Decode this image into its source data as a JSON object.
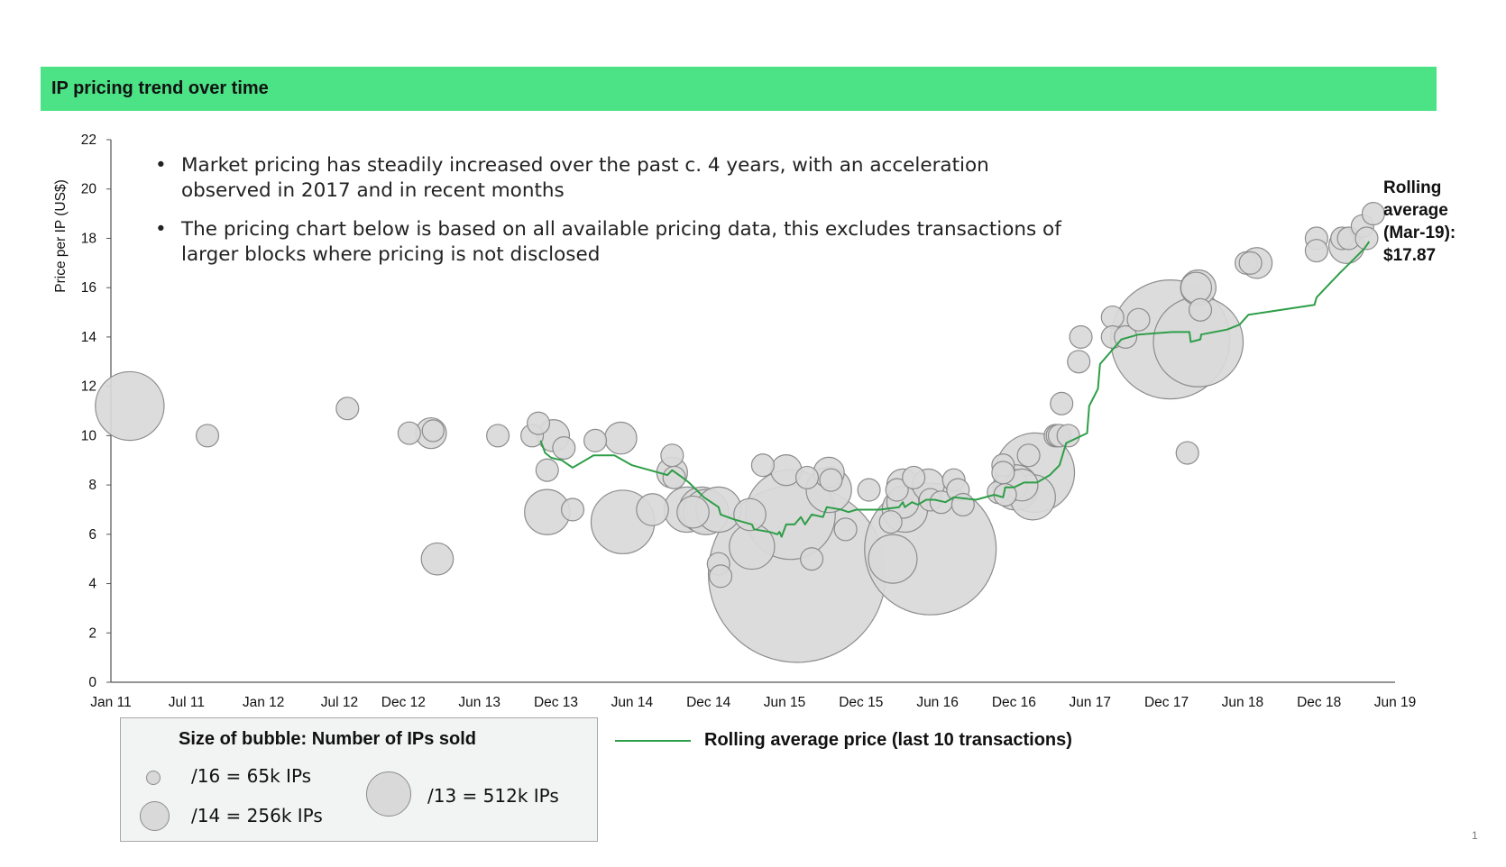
{
  "header": {
    "title": "IP pricing trend over time",
    "accent_color": "#4be386"
  },
  "notes": [
    "Market pricing has steadily increased over the past c. 4 years, with an acceleration observed in 2017 and in recent months",
    "The pricing chart below is based on all available pricing data, this excludes transactions of larger blocks where pricing is not disclosed"
  ],
  "rolling_note": [
    "Rolling",
    "average",
    "(Mar-19):",
    "$17.87"
  ],
  "size_legend": {
    "title": "Size of bubble: Number of IPs sold",
    "items": [
      {
        "label": "/16 = 65k IPs",
        "ips_thousands": 65
      },
      {
        "label": "/14 = 256k IPs",
        "ips_thousands": 256
      },
      {
        "label": "/13 = 512k IPs",
        "ips_thousands": 512
      }
    ]
  },
  "line_legend": {
    "label": "Rolling average price (last 10 transactions)",
    "color": "#2e9e48"
  },
  "page_number": "1",
  "chart_data": {
    "type": "scatter",
    "ylabel": "Price per IP (US$)",
    "xlabel": "",
    "ylim": [
      0,
      22
    ],
    "yticks": [
      0,
      2,
      4,
      6,
      8,
      10,
      12,
      14,
      16,
      18,
      20,
      22
    ],
    "xlim": [
      "2011-01",
      "2019-06"
    ],
    "xticks": [
      {
        "label": "Jan 11",
        "date": "2011-01"
      },
      {
        "label": "Jul 11",
        "date": "2011-07"
      },
      {
        "label": "Jan 12",
        "date": "2012-01"
      },
      {
        "label": "Jul 12",
        "date": "2012-07"
      },
      {
        "label": "Dec 12",
        "date": "2012-12"
      },
      {
        "label": "Jun 13",
        "date": "2013-06"
      },
      {
        "label": "Dec 13",
        "date": "2013-12"
      },
      {
        "label": "Jun 14",
        "date": "2014-06"
      },
      {
        "label": "Dec 14",
        "date": "2014-12"
      },
      {
        "label": "Jun 15",
        "date": "2015-06"
      },
      {
        "label": "Dec 15",
        "date": "2015-12"
      },
      {
        "label": "Jun 16",
        "date": "2016-06"
      },
      {
        "label": "Dec 16",
        "date": "2016-12"
      },
      {
        "label": "Jun 17",
        "date": "2017-06"
      },
      {
        "label": "Dec 17",
        "date": "2017-12"
      },
      {
        "label": "Jun 18",
        "date": "2018-06"
      },
      {
        "label": "Dec 18",
        "date": "2018-12"
      },
      {
        "label": "Jun 19",
        "date": "2019-06"
      }
    ],
    "bubble_color": "#d9d9d9",
    "bubble_stroke": "#8c8c8c",
    "bubble_series": {
      "name": "Transactions (size = number of IPs sold)",
      "points": [
        {
          "date": "2011-02-15",
          "price": 11.2,
          "ips_k": 300
        },
        {
          "date": "2011-08-20",
          "price": 10.0,
          "ips_k": 32
        },
        {
          "date": "2012-07-20",
          "price": 11.1,
          "ips_k": 32
        },
        {
          "date": "2012-12-15",
          "price": 10.1,
          "ips_k": 32
        },
        {
          "date": "2013-02-05",
          "price": 10.1,
          "ips_k": 60
        },
        {
          "date": "2013-02-10",
          "price": 10.2,
          "ips_k": 30
        },
        {
          "date": "2013-02-20",
          "price": 5.0,
          "ips_k": 65
        },
        {
          "date": "2013-07-15",
          "price": 10.0,
          "ips_k": 32
        },
        {
          "date": "2013-10-05",
          "price": 10.0,
          "ips_k": 32
        },
        {
          "date": "2013-10-20",
          "price": 10.5,
          "ips_k": 32
        },
        {
          "date": "2013-11-10",
          "price": 8.6,
          "ips_k": 32
        },
        {
          "date": "2013-11-10",
          "price": 6.9,
          "ips_k": 130
        },
        {
          "date": "2013-11-25",
          "price": 10.0,
          "ips_k": 65
        },
        {
          "date": "2013-12-20",
          "price": 9.5,
          "ips_k": 32
        },
        {
          "date": "2014-01-10",
          "price": 7.0,
          "ips_k": 32
        },
        {
          "date": "2014-03-05",
          "price": 9.8,
          "ips_k": 32
        },
        {
          "date": "2014-05-05",
          "price": 9.9,
          "ips_k": 65
        },
        {
          "date": "2014-05-10",
          "price": 6.5,
          "ips_k": 256
        },
        {
          "date": "2014-07-20",
          "price": 7.0,
          "ips_k": 65
        },
        {
          "date": "2014-09-05",
          "price": 9.2,
          "ips_k": 32
        },
        {
          "date": "2014-09-05",
          "price": 8.5,
          "ips_k": 60
        },
        {
          "date": "2014-09-10",
          "price": 8.3,
          "ips_k": 32
        },
        {
          "date": "2014-10-10",
          "price": 7.0,
          "ips_k": 130
        },
        {
          "date": "2014-10-25",
          "price": 6.9,
          "ips_k": 65
        },
        {
          "date": "2014-11-15",
          "price": 7.0,
          "ips_k": 130
        },
        {
          "date": "2014-11-25",
          "price": 6.9,
          "ips_k": 130
        },
        {
          "date": "2014-12-25",
          "price": 7.0,
          "ips_k": 130
        },
        {
          "date": "2014-12-25",
          "price": 4.8,
          "ips_k": 32
        },
        {
          "date": "2014-12-30",
          "price": 4.3,
          "ips_k": 32
        },
        {
          "date": "2015-03-10",
          "price": 6.8,
          "ips_k": 65
        },
        {
          "date": "2015-03-15",
          "price": 5.5,
          "ips_k": 130
        },
        {
          "date": "2015-04-10",
          "price": 8.8,
          "ips_k": 32
        },
        {
          "date": "2015-06-05",
          "price": 8.6,
          "ips_k": 60
        },
        {
          "date": "2015-06-15",
          "price": 6.8,
          "ips_k": 512
        },
        {
          "date": "2015-07-25",
          "price": 8.3,
          "ips_k": 32
        },
        {
          "date": "2015-07-01",
          "price": 4.4,
          "ips_k": 2000
        },
        {
          "date": "2015-08-05",
          "price": 5.0,
          "ips_k": 32
        },
        {
          "date": "2015-09-15",
          "price": 8.5,
          "ips_k": 60
        },
        {
          "date": "2015-09-20",
          "price": 8.2,
          "ips_k": 32
        },
        {
          "date": "2015-09-15",
          "price": 7.8,
          "ips_k": 130
        },
        {
          "date": "2015-10-25",
          "price": 6.2,
          "ips_k": 32
        },
        {
          "date": "2015-12-20",
          "price": 7.8,
          "ips_k": 32
        },
        {
          "date": "2016-02-10",
          "price": 6.5,
          "ips_k": 32
        },
        {
          "date": "2016-02-15",
          "price": 5.0,
          "ips_k": 150
        },
        {
          "date": "2016-02-25",
          "price": 7.8,
          "ips_k": 32
        },
        {
          "date": "2016-03-10",
          "price": 8.0,
          "ips_k": 65
        },
        {
          "date": "2016-03-10",
          "price": 7.3,
          "ips_k": 65
        },
        {
          "date": "2016-03-15",
          "price": 7.0,
          "ips_k": 130
        },
        {
          "date": "2016-04-05",
          "price": 8.3,
          "ips_k": 32
        },
        {
          "date": "2016-05-10",
          "price": 8.0,
          "ips_k": 65
        },
        {
          "date": "2016-05-15",
          "price": 7.4,
          "ips_k": 32
        },
        {
          "date": "2016-05-15",
          "price": 5.4,
          "ips_k": 1100
        },
        {
          "date": "2016-06-10",
          "price": 7.3,
          "ips_k": 32
        },
        {
          "date": "2016-07-10",
          "price": 8.2,
          "ips_k": 32
        },
        {
          "date": "2016-07-20",
          "price": 7.8,
          "ips_k": 32
        },
        {
          "date": "2016-08-01",
          "price": 7.2,
          "ips_k": 32
        },
        {
          "date": "2016-10-25",
          "price": 7.7,
          "ips_k": 32
        },
        {
          "date": "2016-11-05",
          "price": 8.8,
          "ips_k": 32
        },
        {
          "date": "2016-11-05",
          "price": 8.5,
          "ips_k": 32
        },
        {
          "date": "2016-11-10",
          "price": 7.6,
          "ips_k": 32
        },
        {
          "date": "2016-11-25",
          "price": 8.0,
          "ips_k": 65
        },
        {
          "date": "2016-12-05",
          "price": 7.9,
          "ips_k": 130
        },
        {
          "date": "2016-12-20",
          "price": 8.0,
          "ips_k": 65
        },
        {
          "date": "2017-01-05",
          "price": 9.2,
          "ips_k": 32
        },
        {
          "date": "2017-01-15",
          "price": 7.5,
          "ips_k": 130
        },
        {
          "date": "2017-01-20",
          "price": 8.5,
          "ips_k": 400
        },
        {
          "date": "2017-03-10",
          "price": 10.0,
          "ips_k": 32
        },
        {
          "date": "2017-03-15",
          "price": 10.0,
          "ips_k": 32
        },
        {
          "date": "2017-03-20",
          "price": 10.0,
          "ips_k": 32
        },
        {
          "date": "2017-03-25",
          "price": 11.3,
          "ips_k": 32
        },
        {
          "date": "2017-04-10",
          "price": 10.0,
          "ips_k": 32
        },
        {
          "date": "2017-05-05",
          "price": 13.0,
          "ips_k": 32
        },
        {
          "date": "2017-05-10",
          "price": 14.0,
          "ips_k": 32
        },
        {
          "date": "2017-07-25",
          "price": 14.8,
          "ips_k": 32
        },
        {
          "date": "2017-07-25",
          "price": 14.0,
          "ips_k": 32
        },
        {
          "date": "2017-08-25",
          "price": 14.0,
          "ips_k": 32
        },
        {
          "date": "2017-09-25",
          "price": 14.7,
          "ips_k": 32
        },
        {
          "date": "2017-12-10",
          "price": 13.9,
          "ips_k": 900
        },
        {
          "date": "2018-01-20",
          "price": 9.3,
          "ips_k": 32
        },
        {
          "date": "2018-02-10",
          "price": 16.0,
          "ips_k": 60
        },
        {
          "date": "2018-02-15",
          "price": 16.0,
          "ips_k": 80
        },
        {
          "date": "2018-02-15",
          "price": 13.8,
          "ips_k": 512
        },
        {
          "date": "2018-02-20",
          "price": 15.1,
          "ips_k": 32
        },
        {
          "date": "2018-06-10",
          "price": 17.0,
          "ips_k": 32
        },
        {
          "date": "2018-06-20",
          "price": 17.0,
          "ips_k": 32
        },
        {
          "date": "2018-07-05",
          "price": 17.0,
          "ips_k": 60
        },
        {
          "date": "2018-11-25",
          "price": 18.0,
          "ips_k": 32
        },
        {
          "date": "2018-11-25",
          "price": 17.5,
          "ips_k": 32
        },
        {
          "date": "2019-01-25",
          "price": 18.0,
          "ips_k": 32
        },
        {
          "date": "2019-02-05",
          "price": 17.7,
          "ips_k": 80
        },
        {
          "date": "2019-02-10",
          "price": 18.0,
          "ips_k": 32
        },
        {
          "date": "2019-03-15",
          "price": 18.5,
          "ips_k": 32
        },
        {
          "date": "2019-03-25",
          "price": 18.0,
          "ips_k": 32
        },
        {
          "date": "2019-04-10",
          "price": 19.0,
          "ips_k": 32
        }
      ]
    },
    "line_series": {
      "name": "Rolling average price (last 10 transactions)",
      "color": "#2e9e48",
      "points": [
        {
          "date": "2013-10-25",
          "price": 9.8
        },
        {
          "date": "2013-11-05",
          "price": 9.3
        },
        {
          "date": "2013-11-20",
          "price": 9.1
        },
        {
          "date": "2013-12-15",
          "price": 9.0
        },
        {
          "date": "2014-01-10",
          "price": 8.7
        },
        {
          "date": "2014-03-01",
          "price": 9.2
        },
        {
          "date": "2014-04-20",
          "price": 9.2
        },
        {
          "date": "2014-06-01",
          "price": 8.8
        },
        {
          "date": "2014-08-25",
          "price": 8.4
        },
        {
          "date": "2014-09-05",
          "price": 8.6
        },
        {
          "date": "2014-09-30",
          "price": 8.3
        },
        {
          "date": "2014-10-15",
          "price": 8.1
        },
        {
          "date": "2014-11-20",
          "price": 7.5
        },
        {
          "date": "2014-12-25",
          "price": 7.1
        },
        {
          "date": "2014-12-30",
          "price": 6.8
        },
        {
          "date": "2015-02-01",
          "price": 6.6
        },
        {
          "date": "2015-03-15",
          "price": 6.4
        },
        {
          "date": "2015-03-20",
          "price": 6.2
        },
        {
          "date": "2015-04-25",
          "price": 6.1
        },
        {
          "date": "2015-05-15",
          "price": 6.0
        },
        {
          "date": "2015-05-20",
          "price": 6.1
        },
        {
          "date": "2015-05-25",
          "price": 5.9
        },
        {
          "date": "2015-06-05",
          "price": 6.4
        },
        {
          "date": "2015-06-25",
          "price": 6.4
        },
        {
          "date": "2015-07-10",
          "price": 6.7
        },
        {
          "date": "2015-07-20",
          "price": 6.4
        },
        {
          "date": "2015-08-05",
          "price": 6.8
        },
        {
          "date": "2015-09-01",
          "price": 6.7
        },
        {
          "date": "2015-09-10",
          "price": 7.1
        },
        {
          "date": "2015-10-15",
          "price": 7.0
        },
        {
          "date": "2015-11-01",
          "price": 6.9
        },
        {
          "date": "2015-11-20",
          "price": 7.0
        },
        {
          "date": "2016-01-15",
          "price": 7.0
        },
        {
          "date": "2016-03-01",
          "price": 7.1
        },
        {
          "date": "2016-03-10",
          "price": 7.3
        },
        {
          "date": "2016-03-15",
          "price": 7.1
        },
        {
          "date": "2016-04-01",
          "price": 7.3
        },
        {
          "date": "2016-04-15",
          "price": 7.2
        },
        {
          "date": "2016-05-05",
          "price": 7.4
        },
        {
          "date": "2016-05-25",
          "price": 7.4
        },
        {
          "date": "2016-06-20",
          "price": 7.3
        },
        {
          "date": "2016-07-10",
          "price": 7.5
        },
        {
          "date": "2016-09-01",
          "price": 7.4
        },
        {
          "date": "2016-10-15",
          "price": 7.6
        },
        {
          "date": "2016-11-05",
          "price": 7.5
        },
        {
          "date": "2016-11-10",
          "price": 7.9
        },
        {
          "date": "2016-12-01",
          "price": 7.9
        },
        {
          "date": "2016-12-25",
          "price": 8.1
        },
        {
          "date": "2017-01-25",
          "price": 8.1
        },
        {
          "date": "2017-02-25",
          "price": 8.4
        },
        {
          "date": "2017-03-20",
          "price": 8.8
        },
        {
          "date": "2017-04-05",
          "price": 9.7
        },
        {
          "date": "2017-05-25",
          "price": 10.1
        },
        {
          "date": "2017-05-30",
          "price": 11.2
        },
        {
          "date": "2017-06-20",
          "price": 11.9
        },
        {
          "date": "2017-06-25",
          "price": 12.9
        },
        {
          "date": "2017-08-15",
          "price": 13.9
        },
        {
          "date": "2017-09-25",
          "price": 14.1
        },
        {
          "date": "2017-12-15",
          "price": 14.2
        },
        {
          "date": "2018-01-25",
          "price": 14.2
        },
        {
          "date": "2018-01-28",
          "price": 13.8
        },
        {
          "date": "2018-02-20",
          "price": 13.9
        },
        {
          "date": "2018-02-22",
          "price": 14.1
        },
        {
          "date": "2018-04-25",
          "price": 14.3
        },
        {
          "date": "2018-05-25",
          "price": 14.5
        },
        {
          "date": "2018-06-15",
          "price": 14.9
        },
        {
          "date": "2018-07-25",
          "price": 15.0
        },
        {
          "date": "2018-11-20",
          "price": 15.3
        },
        {
          "date": "2018-11-25",
          "price": 15.6
        },
        {
          "date": "2019-01-20",
          "price": 16.6
        },
        {
          "date": "2019-02-25",
          "price": 17.2
        },
        {
          "date": "2019-03-20",
          "price": 17.6
        },
        {
          "date": "2019-03-31",
          "price": 17.87
        }
      ]
    }
  }
}
